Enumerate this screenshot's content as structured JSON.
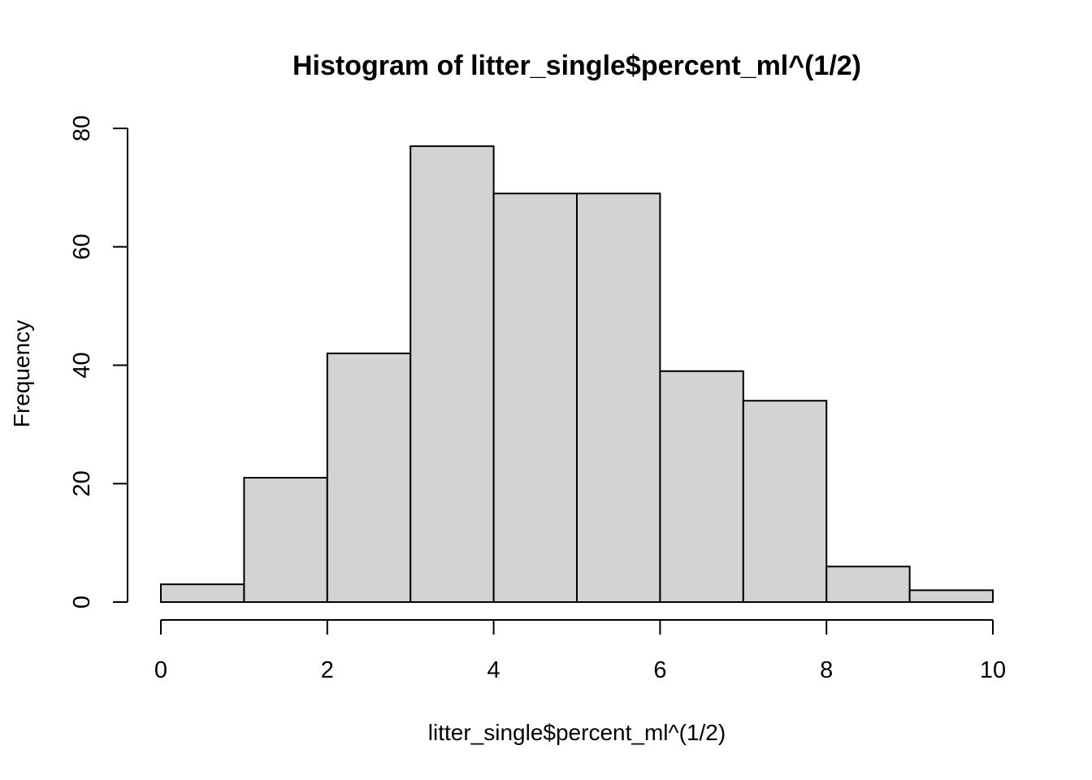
{
  "chart_data": {
    "type": "bar",
    "title": "Histogram of litter_single$percent_ml^(1/2)",
    "xlabel": "litter_single$percent_ml^(1/2)",
    "ylabel": "Frequency",
    "bins": [
      {
        "start": 0,
        "end": 1,
        "count": 3
      },
      {
        "start": 1,
        "end": 2,
        "count": 21
      },
      {
        "start": 2,
        "end": 3,
        "count": 42
      },
      {
        "start": 3,
        "end": 4,
        "count": 77
      },
      {
        "start": 4,
        "end": 5,
        "count": 69
      },
      {
        "start": 5,
        "end": 6,
        "count": 69
      },
      {
        "start": 6,
        "end": 7,
        "count": 39
      },
      {
        "start": 7,
        "end": 8,
        "count": 34
      },
      {
        "start": 8,
        "end": 9,
        "count": 6
      },
      {
        "start": 9,
        "end": 10,
        "count": 2
      }
    ],
    "xlim": [
      0,
      10
    ],
    "ylim": [
      0,
      80
    ],
    "x_ticks": [
      0,
      2,
      4,
      6,
      8,
      10
    ],
    "y_ticks": [
      0,
      20,
      40,
      60,
      80
    ],
    "grid": false,
    "bar_color": "#d3d3d3",
    "edge_color": "#000000"
  }
}
